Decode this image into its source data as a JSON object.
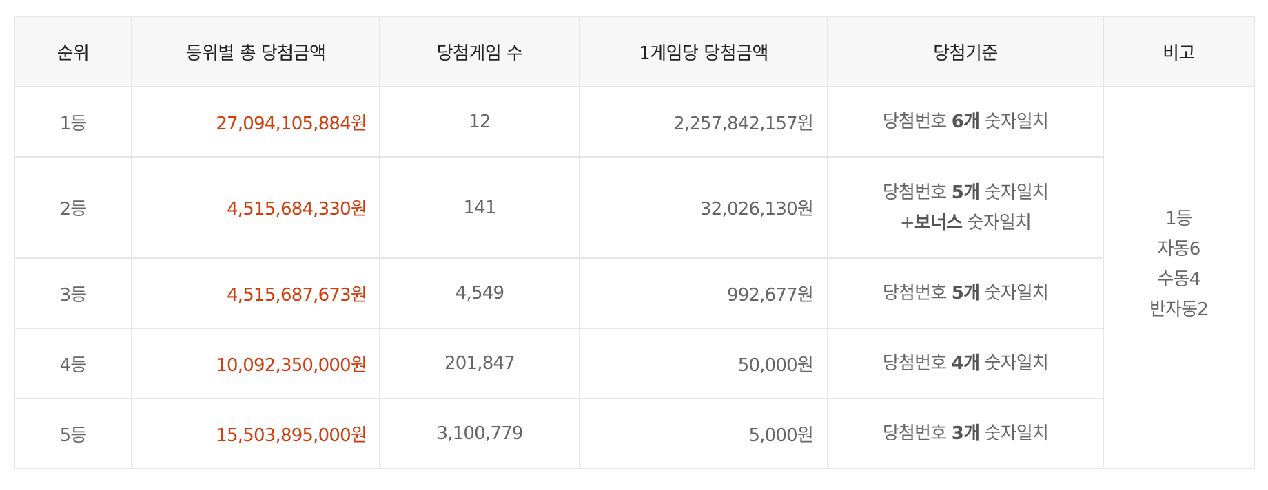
{
  "table": {
    "headers": [
      "순위",
      "등위별 총 당첨금액",
      "당첨게임 수",
      "1게임당 당첨금액",
      "당첨기준",
      "비고"
    ],
    "rows": [
      {
        "rank": "1등",
        "total": "27,094,105,884원",
        "games": "12",
        "per_game": "2,257,842,157원",
        "criteria_prefix": "당첨번호 ",
        "criteria_bold": "6개",
        "criteria_suffix": " 숫자일치"
      },
      {
        "rank": "2등",
        "total": "4,515,684,330원",
        "games": "141",
        "per_game": "32,026,130원",
        "criteria_prefix": "당첨번호 ",
        "criteria_bold": "5개",
        "criteria_suffix": " 숫자일치",
        "criteria2_prefix": "+",
        "criteria2_bold": "보너스",
        "criteria2_suffix": " 숫자일치"
      },
      {
        "rank": "3등",
        "total": "4,515,687,673원",
        "games": "4,549",
        "per_game": "992,677원",
        "criteria_prefix": "당첨번호 ",
        "criteria_bold": "5개",
        "criteria_suffix": " 숫자일치"
      },
      {
        "rank": "4등",
        "total": "10,092,350,000원",
        "games": "201,847",
        "per_game": "50,000원",
        "criteria_prefix": "당첨번호 ",
        "criteria_bold": "4개",
        "criteria_suffix": " 숫자일치"
      },
      {
        "rank": "5등",
        "total": "15,503,895,000원",
        "games": "3,100,779",
        "per_game": "5,000원",
        "criteria_prefix": "당첨번호 ",
        "criteria_bold": "3개",
        "criteria_suffix": " 숫자일치"
      }
    ],
    "remark": [
      "1등",
      "자동6",
      "수동4",
      "반자동2"
    ]
  },
  "colors": {
    "amount": "#d23c0c",
    "header_bg": "#f7f7f7",
    "border": "#e6e6e6",
    "top_border": "#333333",
    "text": "#666666"
  }
}
